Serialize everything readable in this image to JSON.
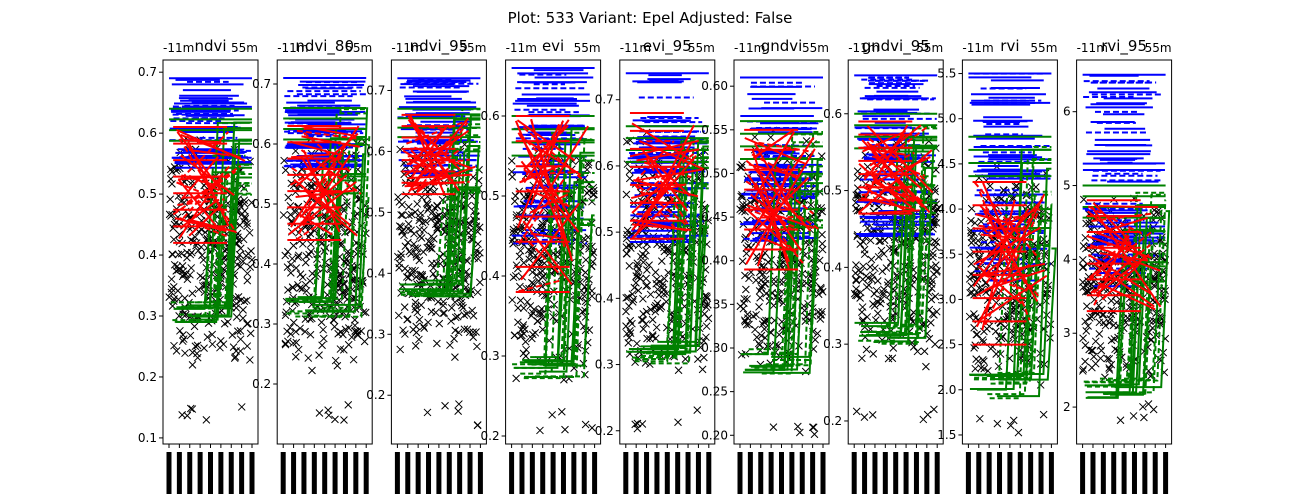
{
  "figure_title": "Plot: 533   Variant: Epel  Adjusted: False",
  "colors": {
    "point_marker": "#000000",
    "series_a": "#0000ff",
    "series_b": "#ff0000",
    "series_c": "#008000",
    "axes": "#000000",
    "background": "#ffffff"
  },
  "chart_data": [
    {
      "type": "line",
      "title": "ndvi",
      "xlim_labels": [
        "-11m",
        "55m"
      ],
      "ylim": [
        0.09,
        0.72
      ],
      "yticks": [
        "0.1",
        "0.2",
        "0.3",
        "0.4",
        "0.5",
        "0.6",
        "0.7"
      ],
      "ytick_values": [
        0.1,
        0.2,
        0.3,
        0.4,
        0.5,
        0.6,
        0.7
      ],
      "bands": {
        "series_a": [
          0.54,
          0.69
        ],
        "series_b": [
          0.42,
          0.61
        ],
        "series_c": [
          0.29,
          0.64
        ],
        "point_marker": [
          0.12,
          0.6
        ]
      }
    },
    {
      "type": "line",
      "title": "ndvi_80",
      "xlim_labels": [
        "-11m",
        "55m"
      ],
      "ylim": [
        0.1,
        0.74
      ],
      "yticks": [
        "0.2",
        "0.3",
        "0.4",
        "0.5",
        "0.6",
        "0.7"
      ],
      "ytick_values": [
        0.2,
        0.3,
        0.4,
        0.5,
        0.6,
        0.7
      ],
      "bands": {
        "series_a": [
          0.56,
          0.71
        ],
        "series_b": [
          0.44,
          0.63
        ],
        "series_c": [
          0.31,
          0.66
        ],
        "point_marker": [
          0.13,
          0.62
        ]
      }
    },
    {
      "type": "line",
      "title": "ndvi_95",
      "xlim_labels": [
        "-11m",
        "55m"
      ],
      "ylim": [
        0.12,
        0.75
      ],
      "yticks": [
        "0.2",
        "0.3",
        "0.4",
        "0.5",
        "0.6",
        "0.7"
      ],
      "ytick_values": [
        0.2,
        0.3,
        0.4,
        0.5,
        0.6,
        0.7
      ],
      "bands": {
        "series_a": [
          0.56,
          0.72
        ],
        "series_b": [
          0.53,
          0.66
        ],
        "series_c": [
          0.36,
          0.67
        ],
        "point_marker": [
          0.15,
          0.63
        ]
      }
    },
    {
      "type": "line",
      "title": "evi",
      "xlim_labels": [
        "-11m",
        "55m"
      ],
      "ylim": [
        0.19,
        0.67
      ],
      "yticks": [
        "0.2",
        "0.3",
        "0.4",
        "0.5",
        "0.6"
      ],
      "ytick_values": [
        0.2,
        0.3,
        0.4,
        0.5,
        0.6
      ],
      "bands": {
        "series_a": [
          0.44,
          0.66
        ],
        "series_b": [
          0.38,
          0.6
        ],
        "series_c": [
          0.27,
          0.6
        ],
        "point_marker": [
          0.2,
          0.58
        ]
      }
    },
    {
      "type": "line",
      "title": "evi_95",
      "xlim_labels": [
        "-11m",
        "55m"
      ],
      "ylim": [
        0.18,
        0.76
      ],
      "yticks": [
        "0.2",
        "0.3",
        "0.4",
        "0.5",
        "0.6",
        "0.7"
      ],
      "ytick_values": [
        0.2,
        0.3,
        0.4,
        0.5,
        0.6,
        0.7
      ],
      "bands": {
        "series_a": [
          0.48,
          0.74
        ],
        "series_b": [
          0.49,
          0.68
        ],
        "series_c": [
          0.3,
          0.66
        ],
        "point_marker": [
          0.2,
          0.66
        ]
      }
    },
    {
      "type": "line",
      "title": "gndvi",
      "xlim_labels": [
        "-11m",
        "55m"
      ],
      "ylim": [
        0.19,
        0.63
      ],
      "yticks": [
        "0.20",
        "0.25",
        "0.30",
        "0.35",
        "0.40",
        "0.45",
        "0.50",
        "0.55",
        "0.60"
      ],
      "ytick_values": [
        0.2,
        0.25,
        0.3,
        0.35,
        0.4,
        0.45,
        0.5,
        0.55,
        0.6
      ],
      "bands": {
        "series_a": [
          0.42,
          0.61
        ],
        "series_b": [
          0.39,
          0.55
        ],
        "series_c": [
          0.27,
          0.56
        ],
        "point_marker": [
          0.2,
          0.55
        ]
      }
    },
    {
      "type": "line",
      "title": "gndvi_95",
      "xlim_labels": [
        "-11m",
        "55m"
      ],
      "ylim": [
        0.17,
        0.67
      ],
      "yticks": [
        "0.2",
        "0.3",
        "0.4",
        "0.5",
        "0.6"
      ],
      "ytick_values": [
        0.2,
        0.3,
        0.4,
        0.5,
        0.6
      ],
      "bands": {
        "series_a": [
          0.44,
          0.65
        ],
        "series_b": [
          0.47,
          0.59
        ],
        "series_c": [
          0.3,
          0.6
        ],
        "point_marker": [
          0.2,
          0.58
        ]
      }
    },
    {
      "type": "line",
      "title": "rvi",
      "xlim_labels": [
        "-11m",
        "55m"
      ],
      "ylim": [
        1.4,
        5.65
      ],
      "yticks": [
        "1.5",
        "2.0",
        "2.5",
        "3.0",
        "3.5",
        "4.0",
        "4.5",
        "5.0",
        "5.5"
      ],
      "ytick_values": [
        1.5,
        2.0,
        2.5,
        3.0,
        3.5,
        4.0,
        4.5,
        5.0,
        5.5
      ],
      "bands": {
        "series_a": [
          3.2,
          5.5
        ],
        "series_b": [
          2.5,
          4.3
        ],
        "series_c": [
          1.9,
          4.8
        ],
        "point_marker": [
          1.5,
          4.6
        ]
      }
    },
    {
      "type": "line",
      "title": "rvi_95",
      "xlim_labels": [
        "-11m",
        "55m"
      ],
      "ylim": [
        1.5,
        6.7
      ],
      "yticks": [
        "2",
        "3",
        "4",
        "5",
        "6"
      ],
      "ytick_values": [
        2,
        3,
        4,
        5,
        6
      ],
      "bands": {
        "series_a": [
          3.5,
          6.5
        ],
        "series_b": [
          3.3,
          4.8
        ],
        "series_c": [
          2.1,
          5.0
        ],
        "point_marker": [
          1.8,
          4.9
        ]
      }
    }
  ]
}
